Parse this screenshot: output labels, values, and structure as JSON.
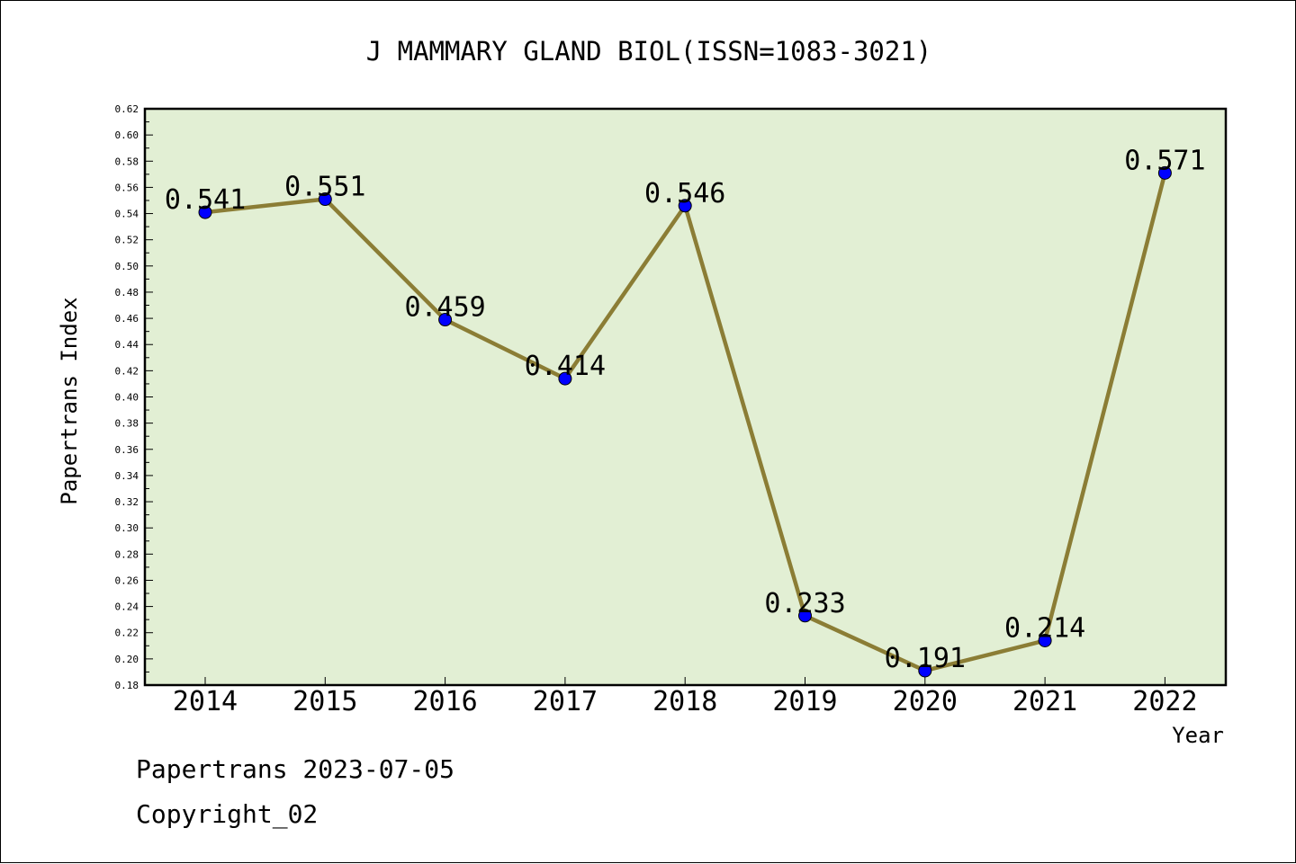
{
  "chart_data": {
    "type": "line",
    "title": "J MAMMARY GLAND BIOL(ISSN=1083-3021)",
    "xlabel": "Year",
    "ylabel": "Papertrans Index",
    "categories": [
      "2014",
      "2015",
      "2016",
      "2017",
      "2018",
      "2019",
      "2020",
      "2021",
      "2022"
    ],
    "values": [
      0.541,
      0.551,
      0.459,
      0.414,
      0.546,
      0.233,
      0.191,
      0.214,
      0.571
    ],
    "data_labels": [
      "0.541",
      "0.551",
      "0.459",
      "0.414",
      "0.546",
      "0.233",
      "0.191",
      "0.214",
      "0.571"
    ],
    "ylim": [
      0.18,
      0.62
    ],
    "ytick_step": 0.02,
    "grid": false,
    "colors": {
      "plot_background": "#e2efd4",
      "line": "#8b7d35",
      "marker": "#0000ff"
    }
  },
  "footer": {
    "line1": "Papertrans 2023-07-05",
    "line2": "Copyright_02"
  }
}
